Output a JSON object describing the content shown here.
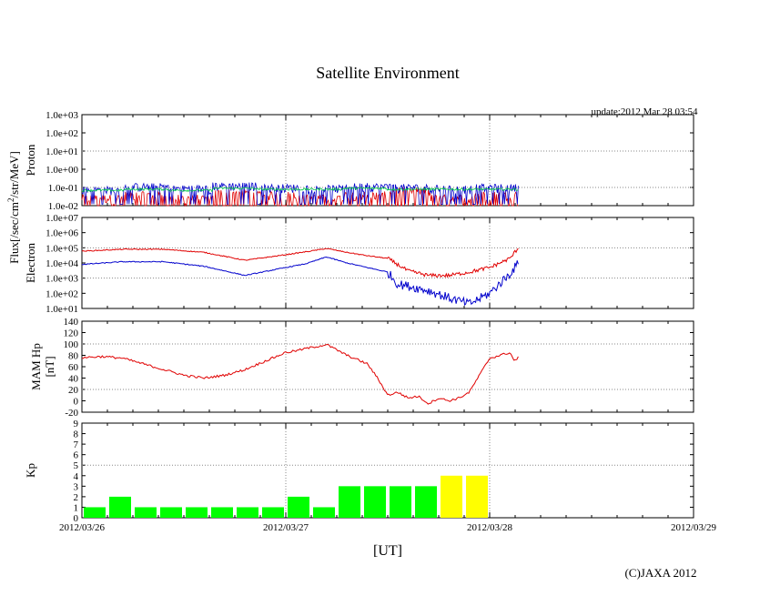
{
  "title": "Satellite Environment",
  "update_label": "update:2012 Mar 28 03:54",
  "copyright": "(C)JAXA 2012",
  "colors": {
    "red": "#e00000",
    "blue": "#0000cc",
    "green": "#00cc44",
    "kp_green": "#00ff00",
    "kp_yellow": "#ffff00",
    "grid": "#888888"
  },
  "chart_data": [
    {
      "type": "line",
      "name": "proton",
      "ylabel": "Proton",
      "scale": "log",
      "ylim": [
        0.01,
        1000
      ],
      "yticks": [
        "1.0e-02",
        "1.0e-01",
        "1.0e+00",
        "1.0e+01",
        "1.0e+02",
        "1.0e+03"
      ],
      "gridlines_at": [
        "1.0e-01",
        "1.0e+01"
      ],
      "series": [
        {
          "name": "red",
          "color": "#e00000",
          "values": [
            0.02,
            0.03,
            0.02,
            0.04,
            0.03,
            0.02,
            0.03,
            0.05,
            0.02,
            0.03
          ]
        },
        {
          "name": "blue",
          "color": "#0000cc",
          "values": [
            0.06,
            0.09,
            0.07,
            0.1,
            0.08,
            0.07,
            0.09,
            0.08,
            0.07,
            0.08
          ]
        },
        {
          "name": "green",
          "color": "#00cc44",
          "values": [
            0.07,
            0.08,
            0.07,
            0.09,
            0.08,
            0.08,
            0.09,
            0.08,
            0.08,
            0.08
          ]
        }
      ],
      "x_range_days": [
        0,
        2.14
      ]
    },
    {
      "type": "line",
      "name": "electron",
      "ylabel": "Electron",
      "scale": "log",
      "ylim": [
        10,
        10000000
      ],
      "yticks": [
        "1.0e+01",
        "1.0e+02",
        "1.0e+03",
        "1.0e+04",
        "1.0e+05",
        "1.0e+06",
        "1.0e+07"
      ],
      "gridlines_at": [
        "1.0e+03",
        "1.0e+05"
      ],
      "series": [
        {
          "name": "red",
          "color": "#e00000",
          "x": [
            0,
            0.2,
            0.4,
            0.6,
            0.8,
            1.0,
            1.1,
            1.2,
            1.3,
            1.4,
            1.5,
            1.6,
            1.7,
            1.8,
            1.9,
            2.0,
            2.1,
            2.14
          ],
          "values": [
            60000,
            80000,
            80000,
            50000,
            15000,
            35000,
            55000,
            90000,
            50000,
            30000,
            20000,
            3000,
            1500,
            1500,
            2500,
            5000,
            20000,
            100000
          ]
        },
        {
          "name": "blue",
          "color": "#0000cc",
          "x": [
            0,
            0.2,
            0.4,
            0.6,
            0.8,
            1.0,
            1.1,
            1.2,
            1.3,
            1.4,
            1.5,
            1.55,
            1.6,
            1.7,
            1.8,
            1.9,
            2.0,
            2.1,
            2.14
          ],
          "values": [
            8000,
            12000,
            12000,
            6000,
            1500,
            5000,
            9000,
            25000,
            10000,
            5000,
            2500,
            400,
            300,
            150,
            50,
            20,
            100,
            2000,
            10000
          ]
        }
      ],
      "x_range_days": [
        0,
        2.14
      ]
    },
    {
      "type": "line",
      "name": "mam_hp",
      "ylabel": "MAM Hp",
      "ylabel2": "[nT]",
      "ylim": [
        -20,
        140
      ],
      "yticks": [
        "-20",
        "0",
        "20",
        "40",
        "60",
        "80",
        "100",
        "120",
        "140"
      ],
      "gridlines_at": [
        20,
        100
      ],
      "series": [
        {
          "name": "Hp",
          "color": "#e00000",
          "x": [
            0,
            0.1,
            0.2,
            0.3,
            0.4,
            0.5,
            0.6,
            0.7,
            0.8,
            0.9,
            1.0,
            1.05,
            1.1,
            1.2,
            1.3,
            1.4,
            1.45,
            1.5,
            1.55,
            1.6,
            1.65,
            1.7,
            1.75,
            1.8,
            1.85,
            1.9,
            1.95,
            2.0,
            2.05,
            2.1,
            2.12,
            2.14
          ],
          "values": [
            76,
            78,
            75,
            65,
            55,
            45,
            40,
            45,
            55,
            70,
            85,
            88,
            92,
            99,
            80,
            65,
            40,
            10,
            15,
            5,
            8,
            -5,
            5,
            0,
            5,
            15,
            45,
            75,
            80,
            85,
            70,
            76
          ]
        }
      ],
      "x_range_days": [
        0,
        2.14
      ]
    },
    {
      "type": "bar",
      "name": "kp",
      "ylabel": "Kp",
      "ylim": [
        0,
        9
      ],
      "yticks": [
        "0",
        "1",
        "2",
        "3",
        "4",
        "5",
        "6",
        "7",
        "8",
        "9"
      ],
      "gridlines_at": [
        5
      ],
      "values": [
        1,
        2,
        1,
        1,
        1,
        1,
        1,
        1,
        2,
        1,
        3,
        3,
        3,
        3,
        4,
        4
      ],
      "bar_colors": [
        "g",
        "g",
        "g",
        "g",
        "g",
        "g",
        "g",
        "g",
        "g",
        "g",
        "g",
        "g",
        "g",
        "g",
        "y",
        "y"
      ],
      "bar_width_hours": 3
    }
  ],
  "shared": {
    "ylabel_flux": "Flux[/sec/cm",
    "ylabel_flux_sup": "2",
    "ylabel_flux_tail": "/str/MeV]",
    "xlabel": "[UT]",
    "xticks": [
      "2012/03/26",
      "2012/03/27",
      "2012/03/28",
      "2012/03/29"
    ],
    "x_days": 3
  }
}
